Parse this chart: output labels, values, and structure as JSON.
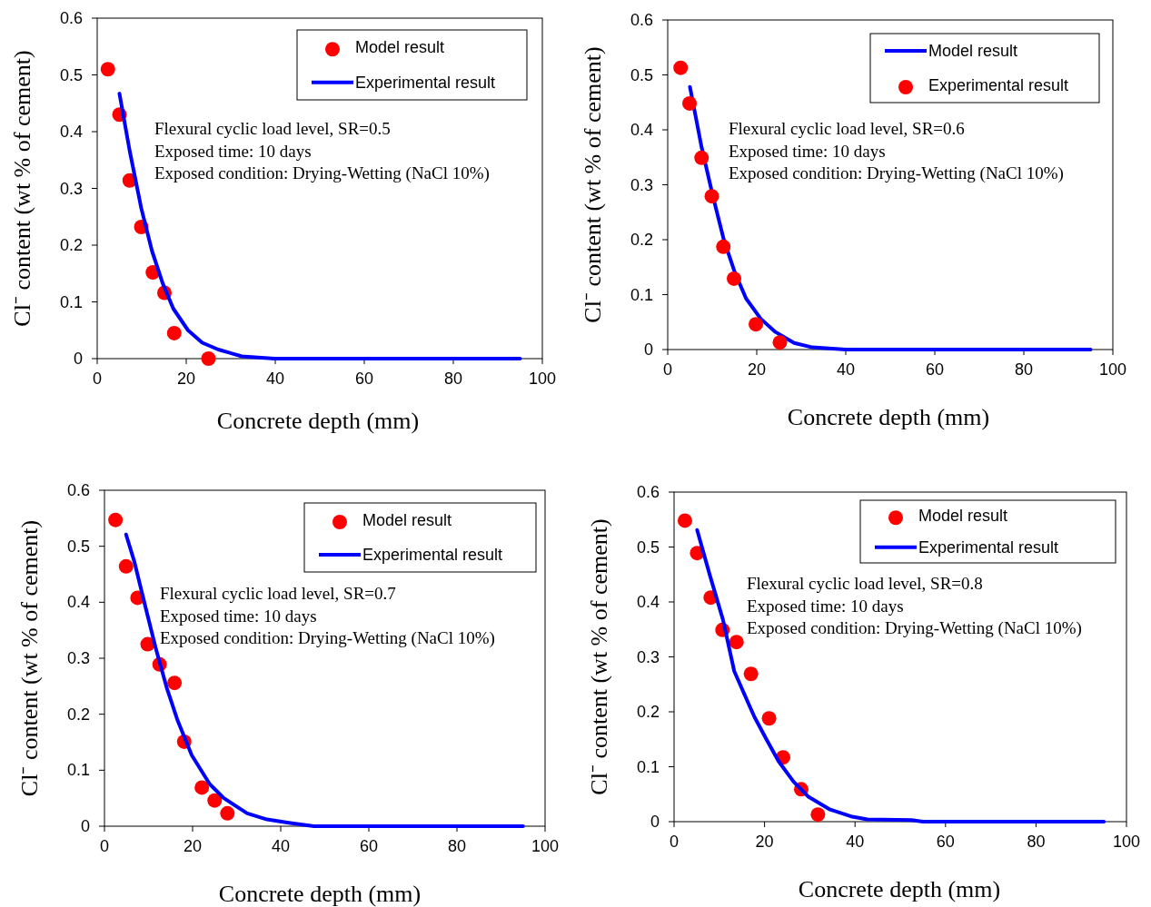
{
  "chart_data": [
    {
      "type": "scatter",
      "xlabel": "Concrete depth (mm)",
      "ylabel": "Cl⁻ content (wt % of cement)",
      "xlim": [
        0,
        100
      ],
      "xticks": [
        0,
        20,
        40,
        60,
        80,
        100
      ],
      "ylim": [
        0,
        0.6
      ],
      "yticks": [
        0,
        0.1,
        0.2,
        0.3,
        0.4,
        0.5,
        0.6
      ],
      "legend": "top right",
      "grid": false,
      "annotations": [
        "Flexural cyclic load level, SR=0.5",
        "Exposed time: 10 days",
        "Exposed condition: Drying-Wetting (NaCl 10%)"
      ],
      "series": [
        {
          "name": "Model result",
          "marker": "circle",
          "color": "#ff0000",
          "x": [
            2.4,
            5.0,
            7.3,
            9.9,
            12.5,
            15.1,
            17.3,
            25.0
          ],
          "values": [
            0.51,
            0.43,
            0.314,
            0.232,
            0.152,
            0.116,
            0.045,
            0.0
          ]
        },
        {
          "name": "Experimental result",
          "type": "line",
          "line_style": "solid",
          "color": "#0000ff",
          "x": [
            5.0,
            7.3,
            9.9,
            12.3,
            14.7,
            17.1,
            20.4,
            23.6,
            27.2,
            32.5,
            39.8,
            95
          ],
          "values": [
            0.467,
            0.366,
            0.265,
            0.19,
            0.133,
            0.088,
            0.05,
            0.028,
            0.016,
            0.004,
            0,
            0
          ]
        }
      ]
    },
    {
      "type": "scatter",
      "xlabel": "Concrete depth (mm)",
      "ylabel": "Cl⁻ content (wt % of cement)",
      "xlim": [
        0,
        100
      ],
      "xticks": [
        0,
        20,
        40,
        60,
        80,
        100
      ],
      "ylim": [
        0,
        0.6
      ],
      "yticks": [
        0,
        0.1,
        0.2,
        0.3,
        0.4,
        0.5,
        0.6
      ],
      "legend": "top right",
      "grid": false,
      "annotations": [
        "Flexural cyclic load level, SR=0.6",
        "Exposed time: 10 days",
        "Exposed condition: Drying-Wetting (NaCl 10%)"
      ],
      "series": [
        {
          "name": "Model result",
          "type": "line",
          "line_style": "solid",
          "color": "#0000ff",
          "x": [
            5.0,
            7.6,
            10.1,
            12.6,
            15.1,
            17.6,
            20.9,
            24.2,
            28.4,
            32.5,
            40,
            95
          ],
          "values": [
            0.478,
            0.369,
            0.281,
            0.2,
            0.14,
            0.093,
            0.056,
            0.032,
            0.012,
            0.004,
            0,
            0
          ]
        },
        {
          "name": "Experimental result",
          "marker": "circle",
          "color": "#ff0000",
          "x": [
            2.9,
            4.9,
            7.6,
            9.9,
            12.5,
            14.9,
            19.8,
            25.2
          ],
          "values": [
            0.513,
            0.448,
            0.349,
            0.279,
            0.187,
            0.129,
            0.046,
            0.013
          ]
        }
      ]
    },
    {
      "type": "scatter",
      "xlabel": "Concrete depth (mm)",
      "ylabel": "Cl⁻ content (wt % of cement)",
      "xlim": [
        0,
        100
      ],
      "xticks": [
        0,
        20,
        40,
        60,
        80,
        100
      ],
      "ylim": [
        0,
        0.6
      ],
      "yticks": [
        0,
        0.1,
        0.2,
        0.3,
        0.4,
        0.5,
        0.6
      ],
      "legend": "top right",
      "grid": false,
      "annotations": [
        "Flexural cyclic load level, SR=0.7",
        "Exposed time: 10 days",
        "Exposed condition: Drying-Wetting (NaCl 10%)"
      ],
      "series": [
        {
          "name": "Model result",
          "marker": "circle",
          "color": "#ff0000",
          "x": [
            2.5,
            4.9,
            7.5,
            9.8,
            12.5,
            15.9,
            18.1,
            22.1,
            25.0,
            27.9
          ],
          "values": [
            0.547,
            0.464,
            0.408,
            0.325,
            0.289,
            0.256,
            0.151,
            0.069,
            0.046,
            0.023
          ]
        },
        {
          "name": "Experimental result",
          "type": "line",
          "line_style": "solid",
          "color": "#0000ff",
          "x": [
            4.9,
            6.8,
            9.2,
            11.6,
            14.1,
            16.5,
            19.8,
            23.9,
            27.1,
            32.4,
            36.9,
            41.8,
            47.5,
            95
          ],
          "values": [
            0.521,
            0.472,
            0.395,
            0.319,
            0.248,
            0.191,
            0.127,
            0.075,
            0.05,
            0.023,
            0.012,
            0.006,
            0,
            0
          ]
        }
      ]
    },
    {
      "type": "scatter",
      "xlabel": "Concrete depth (mm)",
      "ylabel": "Cl⁻ content (wt % of cement)",
      "xlim": [
        0,
        100
      ],
      "xticks": [
        0,
        20,
        40,
        60,
        80,
        100
      ],
      "ylim": [
        0,
        0.6
      ],
      "yticks": [
        0,
        0.1,
        0.2,
        0.3,
        0.4,
        0.5,
        0.6
      ],
      "legend": "top right",
      "grid": false,
      "annotations": [
        "Flexural cyclic load level, SR=0.8",
        "Exposed time: 10 days",
        "Exposed condition: Drying-Wetting (NaCl 10%)"
      ],
      "series": [
        {
          "name": "Model result",
          "marker": "circle",
          "color": "#ff0000",
          "x": [
            2.4,
            5.1,
            8.1,
            10.7,
            13.8,
            17.0,
            21.0,
            24.1,
            28.1,
            31.8
          ],
          "values": [
            0.548,
            0.489,
            0.408,
            0.349,
            0.327,
            0.269,
            0.188,
            0.117,
            0.059,
            0.013
          ]
        },
        {
          "name": "Experimental result",
          "type": "line",
          "line_style": "solid",
          "color": "#0000ff",
          "x": [
            5.1,
            7.9,
            10.8,
            13.3,
            16.5,
            17.8,
            20.6,
            23.1,
            26.4,
            29.6,
            34.5,
            39.4,
            42.7,
            52.5,
            55,
            95
          ],
          "values": [
            0.531,
            0.449,
            0.368,
            0.274,
            0.214,
            0.19,
            0.147,
            0.11,
            0.073,
            0.046,
            0.022,
            0.009,
            0.004,
            0.003,
            0,
            0
          ]
        }
      ]
    }
  ]
}
